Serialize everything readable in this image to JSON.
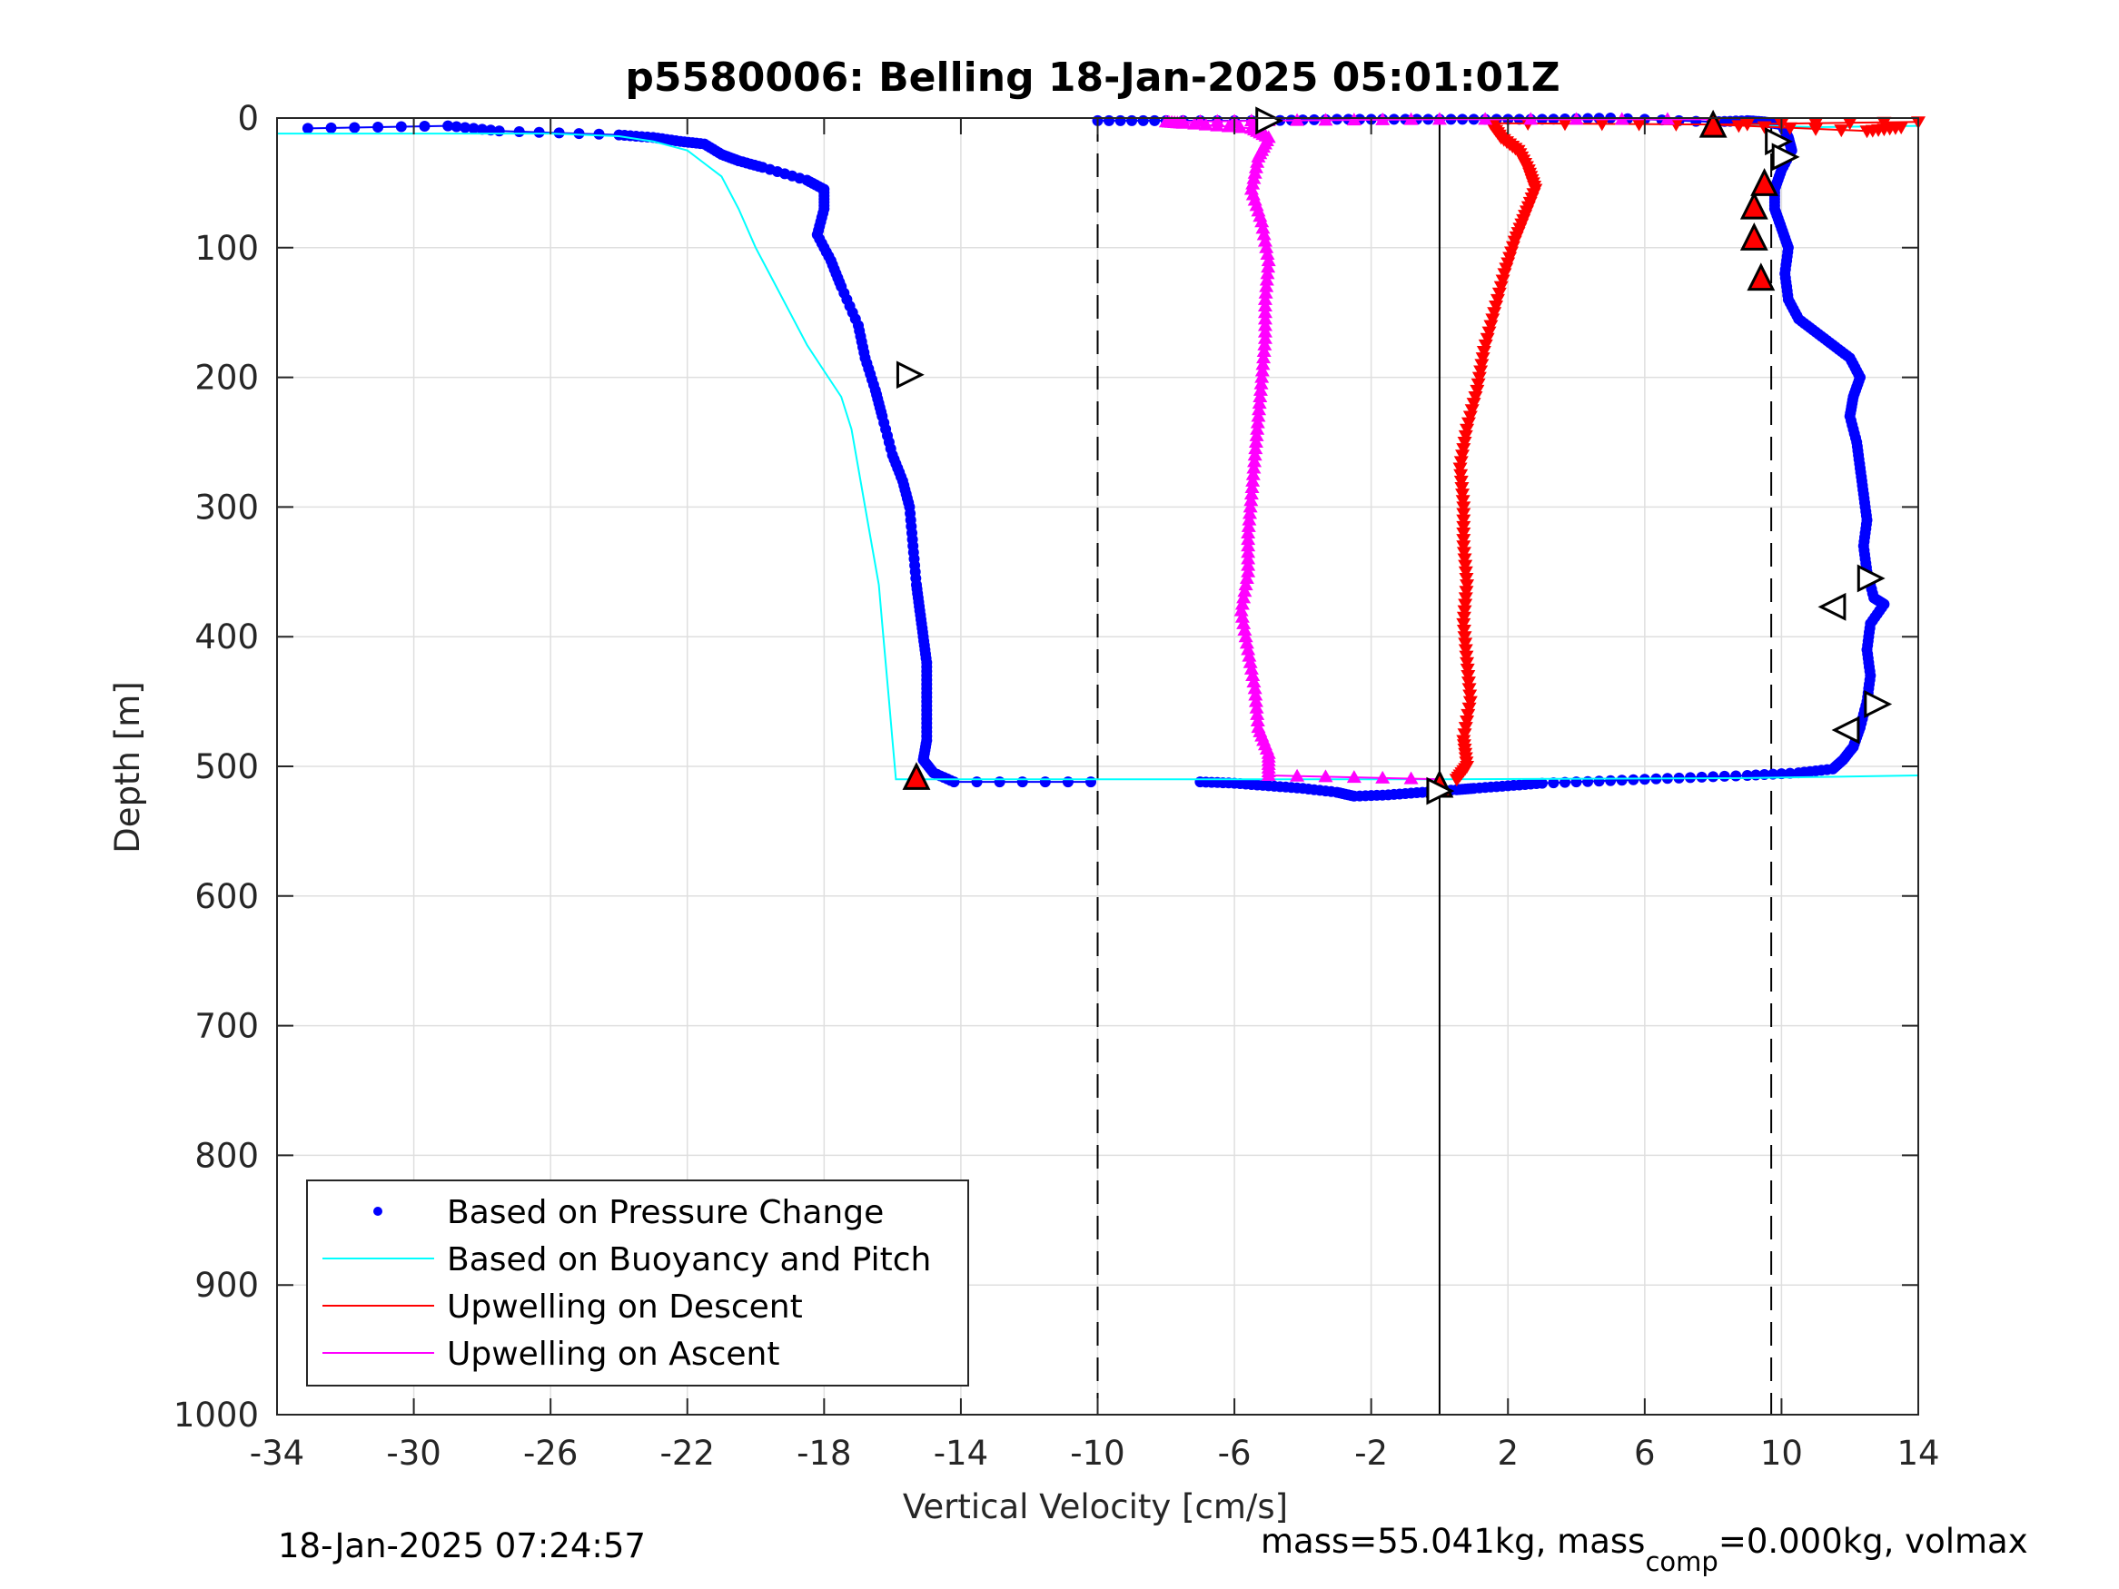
{
  "chart_data": {
    "type": "scatter",
    "title": "p5580006: Belling 18-Jan-2025 05:01:01Z",
    "xlabel": "Vertical Velocity [cm/s]",
    "ylabel": "Depth [m]",
    "xlim": [
      -34,
      14
    ],
    "ylim": [
      0,
      1000
    ],
    "y_reversed": true,
    "grid": true,
    "xticks": [
      -34,
      -30,
      -26,
      -22,
      -18,
      -14,
      -10,
      -6,
      -2,
      2,
      6,
      10,
      14
    ],
    "yticks": [
      0,
      100,
      200,
      300,
      400,
      500,
      600,
      700,
      800,
      900,
      1000
    ],
    "legend_position": "bottom-left",
    "reference_lines": [
      {
        "x": -10,
        "style": "dashed"
      },
      {
        "x": 0,
        "style": "solid"
      },
      {
        "x": 9.7,
        "style": "dashed"
      }
    ],
    "series": [
      {
        "name": "Based on Pressure Change",
        "color": "#0000ff",
        "marker": "dot",
        "segments": [
          {
            "points": [
              [
                -33.1,
                8
              ],
              [
                -29.0,
                6
              ],
              [
                -27.5,
                10
              ],
              [
                -24.0,
                13
              ],
              [
                -23.0,
                15
              ],
              [
                -22.2,
                18
              ],
              [
                -21.5,
                20
              ],
              [
                -21.0,
                28
              ],
              [
                -20.5,
                33
              ],
              [
                -19.8,
                38
              ],
              [
                -18.5,
                48
              ],
              [
                -18.0,
                55
              ],
              [
                -18.0,
                70
              ],
              [
                -18.2,
                90
              ],
              [
                -17.8,
                110
              ],
              [
                -17.5,
                130
              ],
              [
                -17.0,
                160
              ],
              [
                -16.8,
                185
              ],
              [
                -16.5,
                210
              ],
              [
                -16.3,
                230
              ],
              [
                -16.0,
                260
              ],
              [
                -15.7,
                280
              ],
              [
                -15.5,
                300
              ],
              [
                -15.4,
                330
              ],
              [
                -15.3,
                360
              ],
              [
                -15.2,
                380
              ],
              [
                -15.1,
                400
              ],
              [
                -15.0,
                420
              ],
              [
                -15.0,
                440
              ],
              [
                -15.0,
                460
              ],
              [
                -15.0,
                480
              ],
              [
                -15.1,
                495
              ],
              [
                -14.8,
                505
              ],
              [
                -14.2,
                512
              ],
              [
                -10.2,
                512
              ]
            ]
          },
          {
            "points": [
              [
                -10.0,
                2
              ],
              [
                -8.0,
                2
              ],
              [
                -5.0,
                2
              ],
              [
                -3.0,
                1
              ],
              [
                -1.0,
                1
              ],
              [
                1.0,
                1
              ],
              [
                3.0,
                1
              ],
              [
                5.0,
                0
              ],
              [
                8.0,
                3
              ],
              [
                9.0,
                2
              ],
              [
                9.5,
                3
              ],
              [
                10.0,
                5
              ],
              [
                10.2,
                15
              ],
              [
                10.3,
                25
              ],
              [
                10.0,
                40
              ],
              [
                9.8,
                55
              ],
              [
                9.8,
                70
              ],
              [
                10.0,
                85
              ],
              [
                10.2,
                100
              ],
              [
                10.1,
                120
              ],
              [
                10.2,
                140
              ],
              [
                10.5,
                155
              ],
              [
                11.0,
                165
              ],
              [
                11.5,
                175
              ],
              [
                12.0,
                185
              ],
              [
                12.3,
                200
              ],
              [
                12.1,
                215
              ],
              [
                12.0,
                230
              ],
              [
                12.2,
                250
              ],
              [
                12.3,
                270
              ],
              [
                12.4,
                290
              ],
              [
                12.5,
                310
              ],
              [
                12.4,
                330
              ],
              [
                12.5,
                350
              ],
              [
                12.7,
                370
              ],
              [
                13.0,
                375
              ],
              [
                12.6,
                390
              ],
              [
                12.5,
                410
              ],
              [
                12.6,
                430
              ],
              [
                12.5,
                450
              ],
              [
                12.3,
                470
              ],
              [
                12.1,
                485
              ],
              [
                11.8,
                495
              ],
              [
                11.5,
                502
              ],
              [
                10.5,
                505
              ],
              [
                9.0,
                507
              ],
              [
                7.0,
                509
              ],
              [
                5.0,
                511
              ],
              [
                3.0,
                513
              ],
              [
                2.0,
                515
              ],
              [
                1.0,
                517
              ],
              [
                0.5,
                518
              ],
              [
                -0.5,
                520
              ],
              [
                -1.5,
                522
              ],
              [
                -2.5,
                523
              ],
              [
                -3.0,
                520
              ],
              [
                -4.0,
                517
              ],
              [
                -5.0,
                515
              ],
              [
                -6.0,
                513
              ],
              [
                -7.0,
                512
              ]
            ]
          }
        ]
      },
      {
        "name": "Based on Buoyancy and Pitch",
        "color": "#00ffff",
        "marker": "line",
        "segments": [
          {
            "points": [
              [
                -34.0,
                12
              ],
              [
                -30.0,
                12
              ],
              [
                -28.0,
                12
              ],
              [
                -26.0,
                12
              ],
              [
                -24.0,
                14
              ],
              [
                -23.0,
                18
              ],
              [
                -22.0,
                25
              ],
              [
                -21.5,
                35
              ],
              [
                -21.0,
                45
              ],
              [
                -20.5,
                70
              ],
              [
                -20.0,
                100
              ],
              [
                -19.5,
                125
              ],
              [
                -19.0,
                150
              ],
              [
                -18.5,
                175
              ],
              [
                -18.0,
                195
              ],
              [
                -17.5,
                215
              ],
              [
                -17.2,
                240
              ],
              [
                -17.0,
                270
              ],
              [
                -16.8,
                300
              ],
              [
                -16.6,
                330
              ],
              [
                -16.4,
                360
              ],
              [
                -16.3,
                390
              ],
              [
                -16.2,
                420
              ],
              [
                -16.1,
                450
              ],
              [
                -16.0,
                480
              ],
              [
                -15.9,
                510
              ],
              [
                -10.0,
                510
              ],
              [
                0.0,
                510
              ],
              [
                9.0,
                509
              ],
              [
                14.0,
                507
              ]
            ]
          },
          {
            "points": [
              [
                8.0,
                5
              ],
              [
                11.0,
                7
              ],
              [
                14.0,
                6
              ]
            ]
          }
        ]
      },
      {
        "name": "Upwelling on Descent",
        "color": "#ff0000",
        "marker": "triangle-down",
        "segments": [
          {
            "points": [
              [
                14.0,
                3
              ],
              [
                8.0,
                5
              ],
              [
                1.5,
                4
              ],
              [
                1.8,
                15
              ],
              [
                2.3,
                25
              ],
              [
                2.6,
                40
              ],
              [
                2.8,
                55
              ],
              [
                2.5,
                75
              ],
              [
                2.2,
                95
              ],
              [
                1.9,
                120
              ],
              [
                1.6,
                150
              ],
              [
                1.3,
                180
              ],
              [
                1.1,
                210
              ],
              [
                0.8,
                240
              ],
              [
                0.6,
                270
              ],
              [
                0.7,
                300
              ],
              [
                0.7,
                330
              ],
              [
                0.8,
                360
              ],
              [
                0.7,
                390
              ],
              [
                0.8,
                420
              ],
              [
                0.9,
                450
              ],
              [
                0.7,
                480
              ],
              [
                0.8,
                500
              ],
              [
                0.5,
                510
              ]
            ]
          },
          {
            "points": [
              [
                8.0,
                5
              ],
              [
                12.5,
                10
              ],
              [
                13.5,
                7
              ]
            ]
          }
        ]
      },
      {
        "name": "Upwelling on Ascent",
        "color": "#ff00ff",
        "marker": "triangle-up",
        "segments": [
          {
            "points": [
              [
                0.0,
                510
              ],
              [
                -5.0,
                507
              ],
              [
                -5.0,
                490
              ],
              [
                -5.3,
                470
              ],
              [
                -5.4,
                440
              ],
              [
                -5.6,
                410
              ],
              [
                -5.8,
                380
              ],
              [
                -5.6,
                350
              ],
              [
                -5.6,
                320
              ],
              [
                -5.5,
                290
              ],
              [
                -5.4,
                260
              ],
              [
                -5.3,
                230
              ],
              [
                -5.2,
                200
              ],
              [
                -5.1,
                170
              ],
              [
                -5.1,
                140
              ],
              [
                -5.0,
                110
              ],
              [
                -5.2,
                80
              ],
              [
                -5.5,
                55
              ],
              [
                -5.3,
                30
              ],
              [
                -5.0,
                15
              ],
              [
                -5.5,
                8
              ],
              [
                -7.5,
                4
              ],
              [
                -8.0,
                3
              ],
              [
                -5.0,
                2
              ],
              [
                0.0,
                1
              ],
              [
                8.0,
                1
              ]
            ]
          }
        ]
      }
    ],
    "event_markers": [
      {
        "shape": "tri-right",
        "fill": "white",
        "x": -15.5,
        "y": 198
      },
      {
        "shape": "tri-up",
        "fill": "red",
        "x": -15.3,
        "y": 508
      },
      {
        "shape": "tri-right",
        "fill": "white",
        "x": -5.0,
        "y": 2
      },
      {
        "shape": "tri-up",
        "fill": "red",
        "x": 8.0,
        "y": 5
      },
      {
        "shape": "tri-up",
        "fill": "red",
        "x": 9.5,
        "y": 50
      },
      {
        "shape": "tri-up",
        "fill": "red",
        "x": 9.2,
        "y": 68
      },
      {
        "shape": "tri-up",
        "fill": "red",
        "x": 9.2,
        "y": 92
      },
      {
        "shape": "tri-up",
        "fill": "red",
        "x": 9.4,
        "y": 123
      },
      {
        "shape": "tri-right",
        "fill": "white",
        "x": 9.9,
        "y": 18
      },
      {
        "shape": "tri-right",
        "fill": "white",
        "x": 10.1,
        "y": 30
      },
      {
        "shape": "tri-right",
        "fill": "white",
        "x": 12.6,
        "y": 355
      },
      {
        "shape": "tri-left",
        "fill": "white",
        "x": 11.5,
        "y": 377
      },
      {
        "shape": "tri-right",
        "fill": "white",
        "x": 12.8,
        "y": 452
      },
      {
        "shape": "tri-left",
        "fill": "white",
        "x": 11.9,
        "y": 472
      },
      {
        "shape": "tri-up",
        "fill": "red",
        "x": 0.0,
        "y": 514
      },
      {
        "shape": "tri-right",
        "fill": "white",
        "x": 0.0,
        "y": 519
      }
    ]
  },
  "footer": {
    "timestamp": "18-Jan-2025 07:24:57",
    "mass_text": "mass=55.041kg, mass",
    "mass_sub": "comp",
    "mass_tail": "=0.000kg, volmax"
  }
}
